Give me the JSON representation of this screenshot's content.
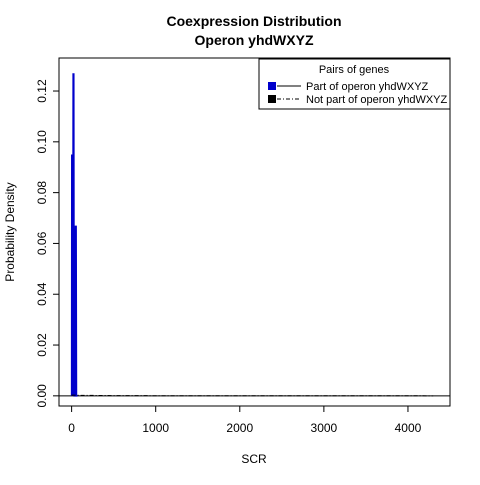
{
  "chart_data": {
    "type": "line",
    "title": [
      "Coexpression Distribution",
      "Operon yhdWXYZ"
    ],
    "xlabel": "SCR",
    "ylabel": "Probability Density",
    "xlim": [
      -150,
      4500
    ],
    "ylim": [
      -0.004,
      0.133
    ],
    "xticks": [
      0,
      1000,
      2000,
      3000,
      4000
    ],
    "xtick_labels": [
      "0",
      "1000",
      "2000",
      "3000",
      "4000"
    ],
    "yticks": [
      0.0,
      0.02,
      0.04,
      0.06,
      0.08,
      0.1,
      0.12
    ],
    "ytick_labels": [
      "0.00",
      "0.02",
      "0.04",
      "0.06",
      "0.08",
      "0.10",
      "0.12"
    ],
    "legend": {
      "title": "Pairs of genes",
      "position": "top-right",
      "entries": [
        "Part of operon yhdWXYZ",
        "Not part of operon yhdWXYZ"
      ]
    },
    "series": [
      {
        "name": "Part of operon yhdWXYZ",
        "color": "#0000cc",
        "style": "solid",
        "x": [
          0,
          2,
          6,
          10,
          14,
          18,
          22,
          26,
          30,
          34,
          38,
          42,
          46,
          50,
          54,
          58,
          62,
          66,
          70
        ],
        "y": [
          0.0,
          0.095,
          0.0,
          0.095,
          0.0,
          0.127,
          0.0,
          0.127,
          0.0,
          0.0,
          0.0,
          0.0,
          0.067,
          0.0,
          0.067,
          0.0,
          0.0,
          0.0,
          0.0
        ]
      },
      {
        "name": "Not part of operon yhdWXYZ",
        "color": "#000000",
        "style": "dashdot",
        "x": [
          0,
          100,
          500,
          1000,
          1500,
          2000,
          2500,
          3000,
          3500,
          4000,
          4300
        ],
        "y": [
          0.0003,
          0.0002,
          0.0001,
          5e-05,
          3e-05,
          3e-05,
          3e-05,
          4e-05,
          6e-05,
          4e-05,
          0.0
        ]
      }
    ]
  }
}
